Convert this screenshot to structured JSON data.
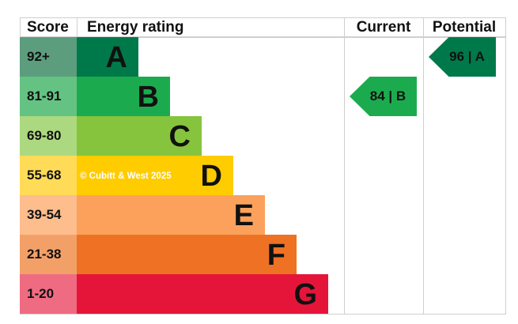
{
  "chart_data": {
    "type": "table",
    "headers": {
      "score": "Score",
      "rating": "Energy rating",
      "current": "Current",
      "potential": "Potential"
    },
    "bands": [
      {
        "score": "92+",
        "letter": "A",
        "color": "#00794a",
        "score_color": "#5c9d7e"
      },
      {
        "score": "81-91",
        "letter": "B",
        "color": "#1bab4e",
        "score_color": "#64c382"
      },
      {
        "score": "69-80",
        "letter": "C",
        "color": "#86c43d",
        "score_color": "#acd97f"
      },
      {
        "score": "55-68",
        "letter": "D",
        "color": "#ffcc00",
        "score_color": "#ffdb58"
      },
      {
        "score": "39-54",
        "letter": "E",
        "color": "#fba15b",
        "score_color": "#fdbd8d"
      },
      {
        "score": "21-38",
        "letter": "F",
        "color": "#ee7124",
        "score_color": "#f3a068"
      },
      {
        "score": "1-20",
        "letter": "G",
        "color": "#e5153a",
        "score_color": "#ef6b82"
      }
    ],
    "current": {
      "value": 84,
      "band": "B",
      "label": "84 | B",
      "color": "#1bab4e"
    },
    "potential": {
      "value": 96,
      "band": "A",
      "label": "96 | A",
      "color": "#00794a"
    }
  },
  "watermark": "© Cubitt & West 2025"
}
